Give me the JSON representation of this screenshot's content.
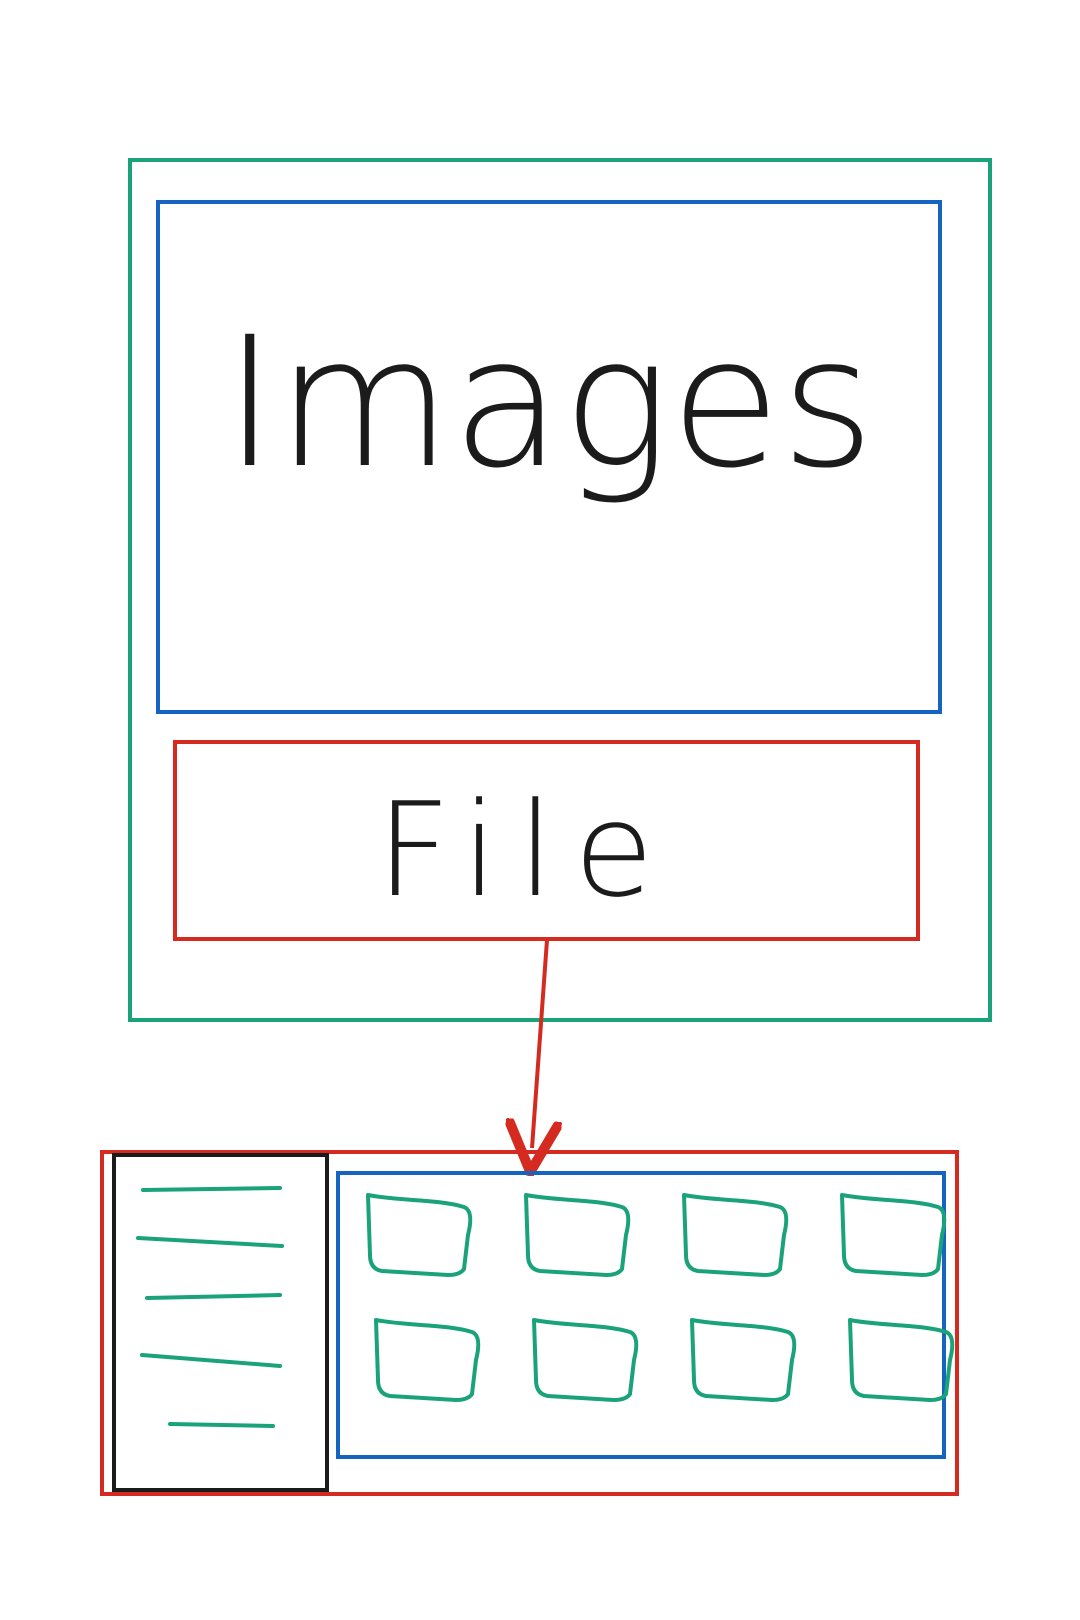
{
  "colors": {
    "green": "#1aa37a",
    "blue": "#1565c0",
    "red": "#d42a20",
    "black": "#1b1b1b"
  },
  "window": {
    "image_area_label": "Images",
    "file_button_label": "File"
  },
  "file_browser": {
    "list_item_count": 5,
    "thumbnail_rows": 2,
    "thumbnail_cols": 4
  }
}
